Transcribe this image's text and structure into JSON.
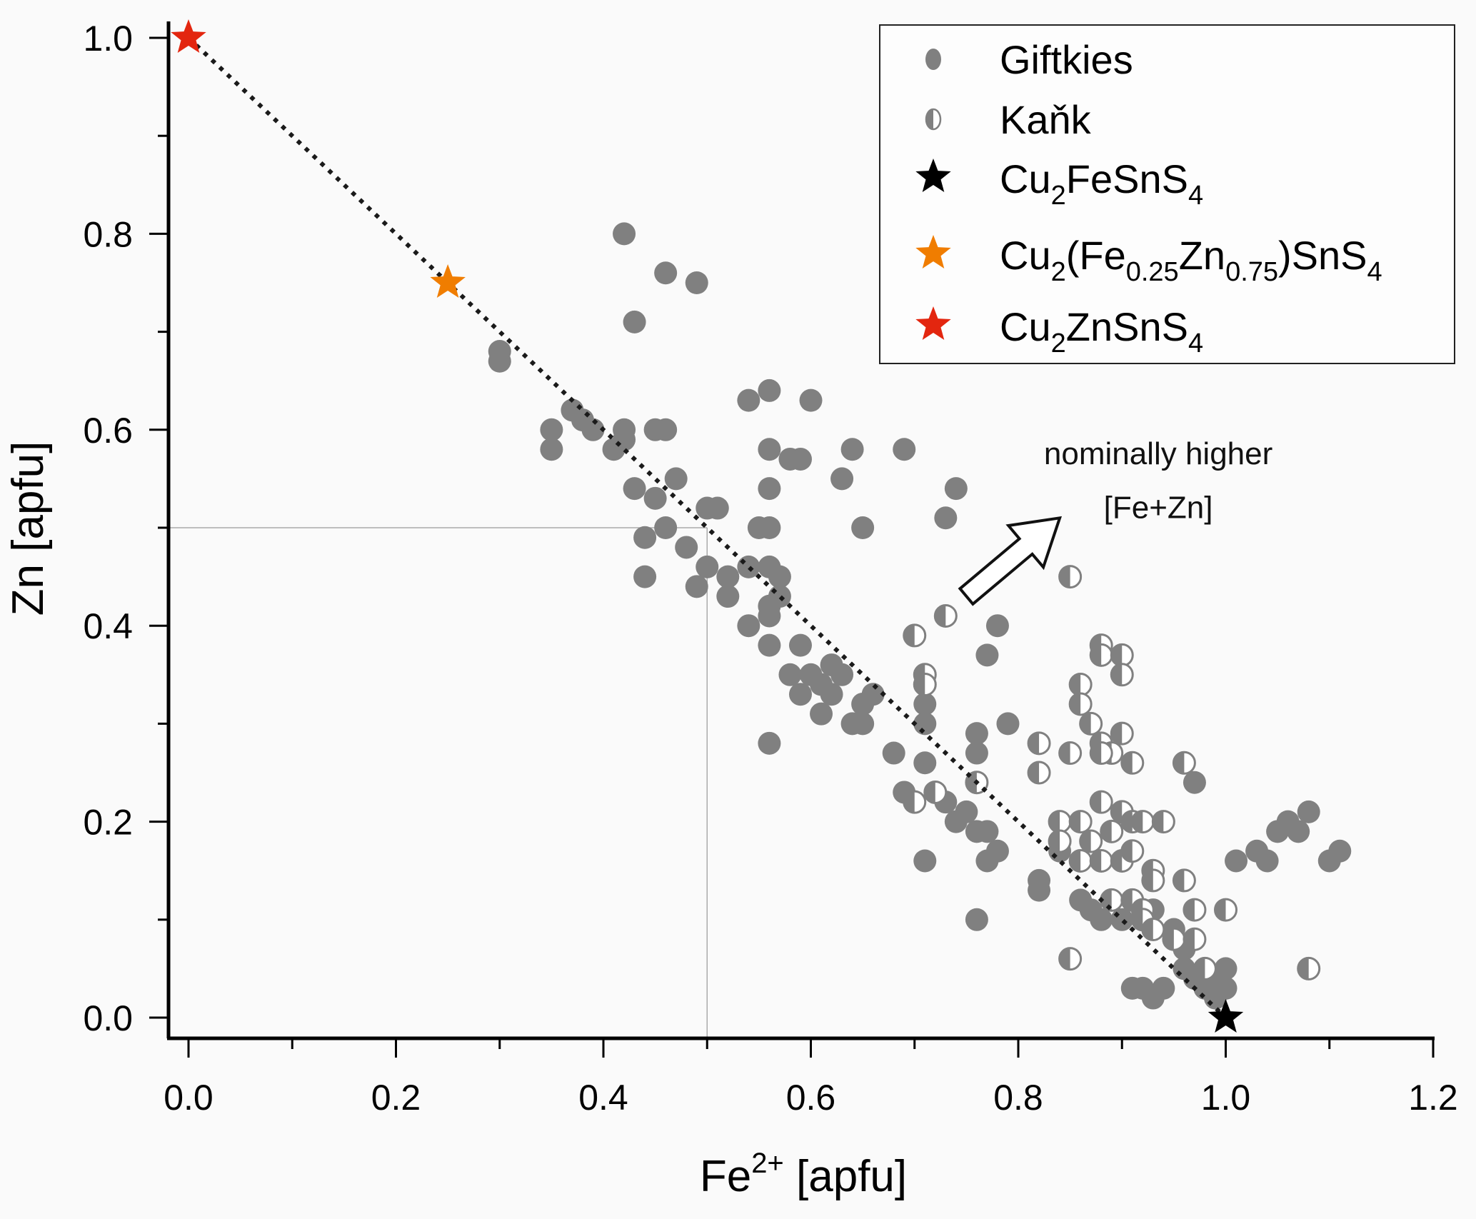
{
  "chart_data": {
    "type": "scatter",
    "title": "",
    "xlabel": {
      "base": "Fe",
      "sup": "2+",
      "rest": " [apfu]"
    },
    "ylabel": "Zn [apfu]",
    "xlim": [
      -0.02,
      1.2
    ],
    "ylim": [
      -0.02,
      1.02
    ],
    "x_ticks": [
      "0.0",
      "0.2",
      "0.4",
      "0.6",
      "0.8",
      "1.0",
      "1.2"
    ],
    "x_tick_values": [
      0.0,
      0.2,
      0.4,
      0.6,
      0.8,
      1.0,
      1.2
    ],
    "x_minor_tick_values": [
      0.1,
      0.3,
      0.5,
      0.7,
      0.9,
      1.1
    ],
    "y_ticks": [
      "0.0",
      "0.2",
      "0.4",
      "0.6",
      "0.8",
      "1.0"
    ],
    "y_tick_values": [
      0.0,
      0.2,
      0.4,
      0.6,
      0.8,
      1.0
    ],
    "y_minor_tick_values": [
      0.1,
      0.3,
      0.5,
      0.7,
      0.9
    ],
    "grid": false,
    "reference_lines": {
      "vertical_x": 0.5,
      "horizontal_y": 0.5,
      "color": "#aaaaaa"
    },
    "trend_line": {
      "from": [
        0.0,
        1.0
      ],
      "to": [
        1.0,
        0.0
      ],
      "style": "dotted",
      "color": "#1a1a1a"
    },
    "annotation": {
      "lines": [
        "nominally higher",
        "[Fe+Zn]"
      ],
      "arrow_direction": "up-right",
      "arrow_from": [
        0.75,
        0.43
      ],
      "arrow_to": [
        0.84,
        0.51
      ]
    },
    "legend_position": "top-right",
    "series": [
      {
        "name": "Giftkies",
        "marker": "circle-filled",
        "color": "#808080",
        "points": [
          [
            0.42,
            0.8
          ],
          [
            0.46,
            0.76
          ],
          [
            0.49,
            0.75
          ],
          [
            0.43,
            0.71
          ],
          [
            0.3,
            0.68
          ],
          [
            0.3,
            0.67
          ],
          [
            0.35,
            0.6
          ],
          [
            0.35,
            0.58
          ],
          [
            0.37,
            0.62
          ],
          [
            0.38,
            0.61
          ],
          [
            0.39,
            0.6
          ],
          [
            0.41,
            0.58
          ],
          [
            0.42,
            0.6
          ],
          [
            0.42,
            0.59
          ],
          [
            0.45,
            0.6
          ],
          [
            0.46,
            0.6
          ],
          [
            0.43,
            0.54
          ],
          [
            0.45,
            0.53
          ],
          [
            0.47,
            0.55
          ],
          [
            0.46,
            0.5
          ],
          [
            0.48,
            0.48
          ],
          [
            0.44,
            0.49
          ],
          [
            0.44,
            0.45
          ],
          [
            0.5,
            0.52
          ],
          [
            0.51,
            0.52
          ],
          [
            0.5,
            0.46
          ],
          [
            0.49,
            0.44
          ],
          [
            0.52,
            0.45
          ],
          [
            0.52,
            0.43
          ],
          [
            0.54,
            0.46
          ],
          [
            0.55,
            0.5
          ],
          [
            0.56,
            0.5
          ],
          [
            0.56,
            0.46
          ],
          [
            0.57,
            0.45
          ],
          [
            0.54,
            0.4
          ],
          [
            0.56,
            0.38
          ],
          [
            0.56,
            0.42
          ],
          [
            0.56,
            0.41
          ],
          [
            0.57,
            0.43
          ],
          [
            0.54,
            0.63
          ],
          [
            0.56,
            0.64
          ],
          [
            0.6,
            0.63
          ],
          [
            0.56,
            0.58
          ],
          [
            0.56,
            0.54
          ],
          [
            0.58,
            0.57
          ],
          [
            0.59,
            0.57
          ],
          [
            0.64,
            0.58
          ],
          [
            0.63,
            0.55
          ],
          [
            0.65,
            0.5
          ],
          [
            0.69,
            0.58
          ],
          [
            0.73,
            0.51
          ],
          [
            0.74,
            0.54
          ],
          [
            0.59,
            0.38
          ],
          [
            0.58,
            0.35
          ],
          [
            0.59,
            0.33
          ],
          [
            0.6,
            0.35
          ],
          [
            0.61,
            0.34
          ],
          [
            0.62,
            0.36
          ],
          [
            0.62,
            0.33
          ],
          [
            0.63,
            0.35
          ],
          [
            0.61,
            0.31
          ],
          [
            0.64,
            0.3
          ],
          [
            0.65,
            0.32
          ],
          [
            0.66,
            0.33
          ],
          [
            0.65,
            0.3
          ],
          [
            0.56,
            0.28
          ],
          [
            0.68,
            0.27
          ],
          [
            0.69,
            0.23
          ],
          [
            0.7,
            0.22
          ],
          [
            0.72,
            0.23
          ],
          [
            0.73,
            0.22
          ],
          [
            0.74,
            0.2
          ],
          [
            0.75,
            0.21
          ],
          [
            0.76,
            0.19
          ],
          [
            0.77,
            0.19
          ],
          [
            0.77,
            0.16
          ],
          [
            0.78,
            0.17
          ],
          [
            0.71,
            0.16
          ],
          [
            0.71,
            0.3
          ],
          [
            0.71,
            0.32
          ],
          [
            0.71,
            0.26
          ],
          [
            0.76,
            0.27
          ],
          [
            0.76,
            0.29
          ],
          [
            0.77,
            0.37
          ],
          [
            0.78,
            0.4
          ],
          [
            0.79,
            0.3
          ],
          [
            0.76,
            0.1
          ],
          [
            0.82,
            0.14
          ],
          [
            0.82,
            0.13
          ],
          [
            0.84,
            0.17
          ],
          [
            0.86,
            0.12
          ],
          [
            0.87,
            0.11
          ],
          [
            0.88,
            0.1
          ],
          [
            0.9,
            0.1
          ],
          [
            0.91,
            0.03
          ],
          [
            0.92,
            0.03
          ],
          [
            0.93,
            0.02
          ],
          [
            0.94,
            0.03
          ],
          [
            0.96,
            0.05
          ],
          [
            0.97,
            0.04
          ],
          [
            0.98,
            0.05
          ],
          [
            0.99,
            0.04
          ],
          [
            1.0,
            0.03
          ],
          [
            1.0,
            0.05
          ],
          [
            0.98,
            0.03
          ],
          [
            0.99,
            0.02
          ],
          [
            1.01,
            0.16
          ],
          [
            1.03,
            0.17
          ],
          [
            1.04,
            0.16
          ],
          [
            1.05,
            0.19
          ],
          [
            1.06,
            0.2
          ],
          [
            1.07,
            0.19
          ],
          [
            1.08,
            0.21
          ],
          [
            1.1,
            0.16
          ],
          [
            1.11,
            0.17
          ],
          [
            0.97,
            0.24
          ],
          [
            0.93,
            0.11
          ],
          [
            0.95,
            0.09
          ],
          [
            0.96,
            0.07
          ]
        ]
      },
      {
        "name": "Kaňk",
        "marker": "circle-half-filled",
        "color": "#808080",
        "points": [
          [
            0.85,
            0.45
          ],
          [
            0.73,
            0.41
          ],
          [
            0.7,
            0.39
          ],
          [
            0.71,
            0.35
          ],
          [
            0.71,
            0.34
          ],
          [
            0.88,
            0.38
          ],
          [
            0.88,
            0.37
          ],
          [
            0.9,
            0.37
          ],
          [
            0.9,
            0.35
          ],
          [
            0.86,
            0.34
          ],
          [
            0.86,
            0.32
          ],
          [
            0.87,
            0.3
          ],
          [
            0.88,
            0.28
          ],
          [
            0.9,
            0.29
          ],
          [
            0.89,
            0.27
          ],
          [
            0.91,
            0.26
          ],
          [
            0.88,
            0.27
          ],
          [
            0.85,
            0.27
          ],
          [
            0.82,
            0.28
          ],
          [
            0.82,
            0.25
          ],
          [
            0.76,
            0.24
          ],
          [
            0.7,
            0.22
          ],
          [
            0.72,
            0.23
          ],
          [
            0.84,
            0.2
          ],
          [
            0.84,
            0.18
          ],
          [
            0.86,
            0.2
          ],
          [
            0.87,
            0.18
          ],
          [
            0.88,
            0.22
          ],
          [
            0.89,
            0.19
          ],
          [
            0.9,
            0.21
          ],
          [
            0.91,
            0.2
          ],
          [
            0.92,
            0.2
          ],
          [
            0.86,
            0.16
          ],
          [
            0.88,
            0.16
          ],
          [
            0.9,
            0.16
          ],
          [
            0.91,
            0.17
          ],
          [
            0.93,
            0.15
          ],
          [
            0.93,
            0.14
          ],
          [
            0.96,
            0.26
          ],
          [
            0.94,
            0.2
          ],
          [
            0.89,
            0.12
          ],
          [
            0.91,
            0.12
          ],
          [
            0.92,
            0.11
          ],
          [
            0.92,
            0.1
          ],
          [
            0.97,
            0.11
          ],
          [
            0.96,
            0.14
          ],
          [
            0.93,
            0.09
          ],
          [
            0.95,
            0.08
          ],
          [
            0.97,
            0.08
          ],
          [
            1.0,
            0.11
          ],
          [
            0.98,
            0.05
          ],
          [
            1.08,
            0.05
          ],
          [
            0.85,
            0.06
          ]
        ]
      },
      {
        "name": "Cu2FeSnS4",
        "label_parts": [
          [
            "Cu",
            ""
          ],
          [
            "2",
            "sub"
          ],
          [
            "FeSnS",
            ""
          ],
          [
            "4",
            "sub"
          ]
        ],
        "marker": "star",
        "color": "#000000",
        "points": [
          [
            1.0,
            0.0
          ]
        ]
      },
      {
        "name": "Cu2(Fe0.25Zn0.75)SnS4",
        "label_parts": [
          [
            "Cu",
            ""
          ],
          [
            "2",
            "sub"
          ],
          [
            "(Fe",
            ""
          ],
          [
            "0.25",
            "sub"
          ],
          [
            "Zn",
            ""
          ],
          [
            "0.75",
            "sub"
          ],
          [
            ")SnS",
            ""
          ],
          [
            "4",
            "sub"
          ]
        ],
        "marker": "star",
        "color": "#f07d00",
        "points": [
          [
            0.25,
            0.75
          ]
        ]
      },
      {
        "name": "Cu2ZnSnS4",
        "label_parts": [
          [
            "Cu",
            ""
          ],
          [
            "2",
            "sub"
          ],
          [
            "ZnSnS",
            ""
          ],
          [
            "4",
            "sub"
          ]
        ],
        "marker": "star",
        "color": "#e3260f",
        "points": [
          [
            0.0,
            1.0
          ]
        ]
      }
    ]
  }
}
